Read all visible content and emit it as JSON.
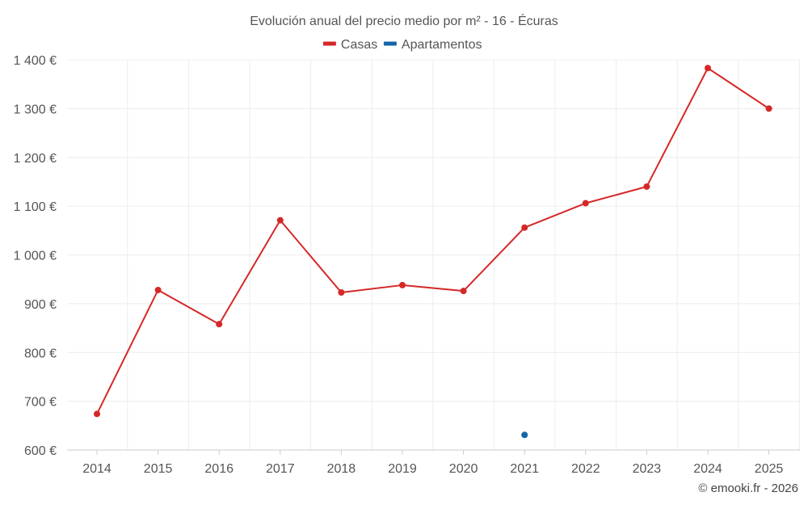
{
  "chart_data": {
    "type": "line",
    "title": "Evolución anual del precio medio por m² - 16 - Écuras",
    "xlabel": "",
    "ylabel": "",
    "categories": [
      "2014",
      "2015",
      "2016",
      "2017",
      "2018",
      "2019",
      "2020",
      "2021",
      "2022",
      "2023",
      "2024",
      "2025"
    ],
    "ylim": [
      600,
      1400
    ],
    "yticks": [
      600,
      700,
      800,
      900,
      1000,
      1100,
      1200,
      1300,
      1400
    ],
    "ytick_labels": [
      "600 €",
      "700 €",
      "800 €",
      "900 €",
      "1 000 €",
      "1 100 €",
      "1 200 €",
      "1 300 €",
      "1 400 €"
    ],
    "grid": true,
    "legend_position": "top-center",
    "series": [
      {
        "name": "Casas",
        "color": "#d62728",
        "values": [
          674,
          928,
          858,
          1071,
          923,
          938,
          926,
          1056,
          1106,
          1140,
          1383,
          1300
        ]
      },
      {
        "name": "Apartamentos",
        "color": "#1565a8",
        "values": [
          null,
          null,
          null,
          null,
          null,
          null,
          null,
          631,
          null,
          null,
          null,
          null
        ]
      }
    ]
  },
  "credit": "© emooki.fr - 2026"
}
